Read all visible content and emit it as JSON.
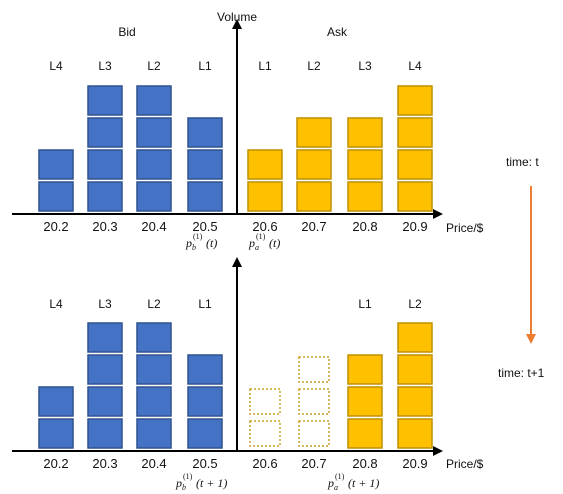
{
  "top": {
    "axis_label_y": "Volume",
    "axis_label_x": "Price/$",
    "side_bid": "Bid",
    "side_ask": "Ask",
    "time_label": "time: t",
    "bid": [
      {
        "level": "L4",
        "price": "20.2",
        "volume": 2
      },
      {
        "level": "L3",
        "price": "20.3",
        "volume": 4
      },
      {
        "level": "L2",
        "price": "20.4",
        "volume": 4
      },
      {
        "level": "L1",
        "price": "20.5",
        "volume": 3
      }
    ],
    "ask": [
      {
        "level": "L1",
        "price": "20.6",
        "volume": 2,
        "removed": 0
      },
      {
        "level": "L2",
        "price": "20.7",
        "volume": 3,
        "removed": 0
      },
      {
        "level": "L3",
        "price": "20.8",
        "volume": 3,
        "removed": 0
      },
      {
        "level": "L4",
        "price": "20.9",
        "volume": 4,
        "removed": 0
      }
    ],
    "best_bid_label": {
      "base": "p",
      "sub": "b",
      "sup": "(1)",
      "arg": "(t)"
    },
    "best_ask_label": {
      "base": "p",
      "sub": "a",
      "sup": "(1)",
      "arg": "(t)"
    }
  },
  "bottom": {
    "axis_label_x": "Price/$",
    "time_label": "time: t+1",
    "bid": [
      {
        "level": "L4",
        "price": "20.2",
        "volume": 2
      },
      {
        "level": "L3",
        "price": "20.3",
        "volume": 4
      },
      {
        "level": "L2",
        "price": "20.4",
        "volume": 4
      },
      {
        "level": "L1",
        "price": "20.5",
        "volume": 3
      }
    ],
    "ask": [
      {
        "level": "",
        "price": "20.6",
        "volume": 0,
        "removed": 2
      },
      {
        "level": "",
        "price": "20.7",
        "volume": 0,
        "removed": 3
      },
      {
        "level": "L1",
        "price": "20.8",
        "volume": 3,
        "removed": 0
      },
      {
        "level": "L2",
        "price": "20.9",
        "volume": 4,
        "removed": 0
      }
    ],
    "best_bid_label": {
      "base": "p",
      "sub": "b",
      "sup": "(1)",
      "arg": "(t + 1)"
    },
    "best_ask_label": {
      "base": "p",
      "sub": "a",
      "sup": "(1)",
      "arg": "(t + 1)"
    }
  },
  "colors": {
    "bid_fill": "#4472c4",
    "bid_stroke": "#2f528f",
    "ask_fill": "#ffc000",
    "ask_stroke": "#bf8f00",
    "removed_stroke": "#c9a227",
    "time_arrow": "#ed7d31",
    "axis": "#000000"
  }
}
